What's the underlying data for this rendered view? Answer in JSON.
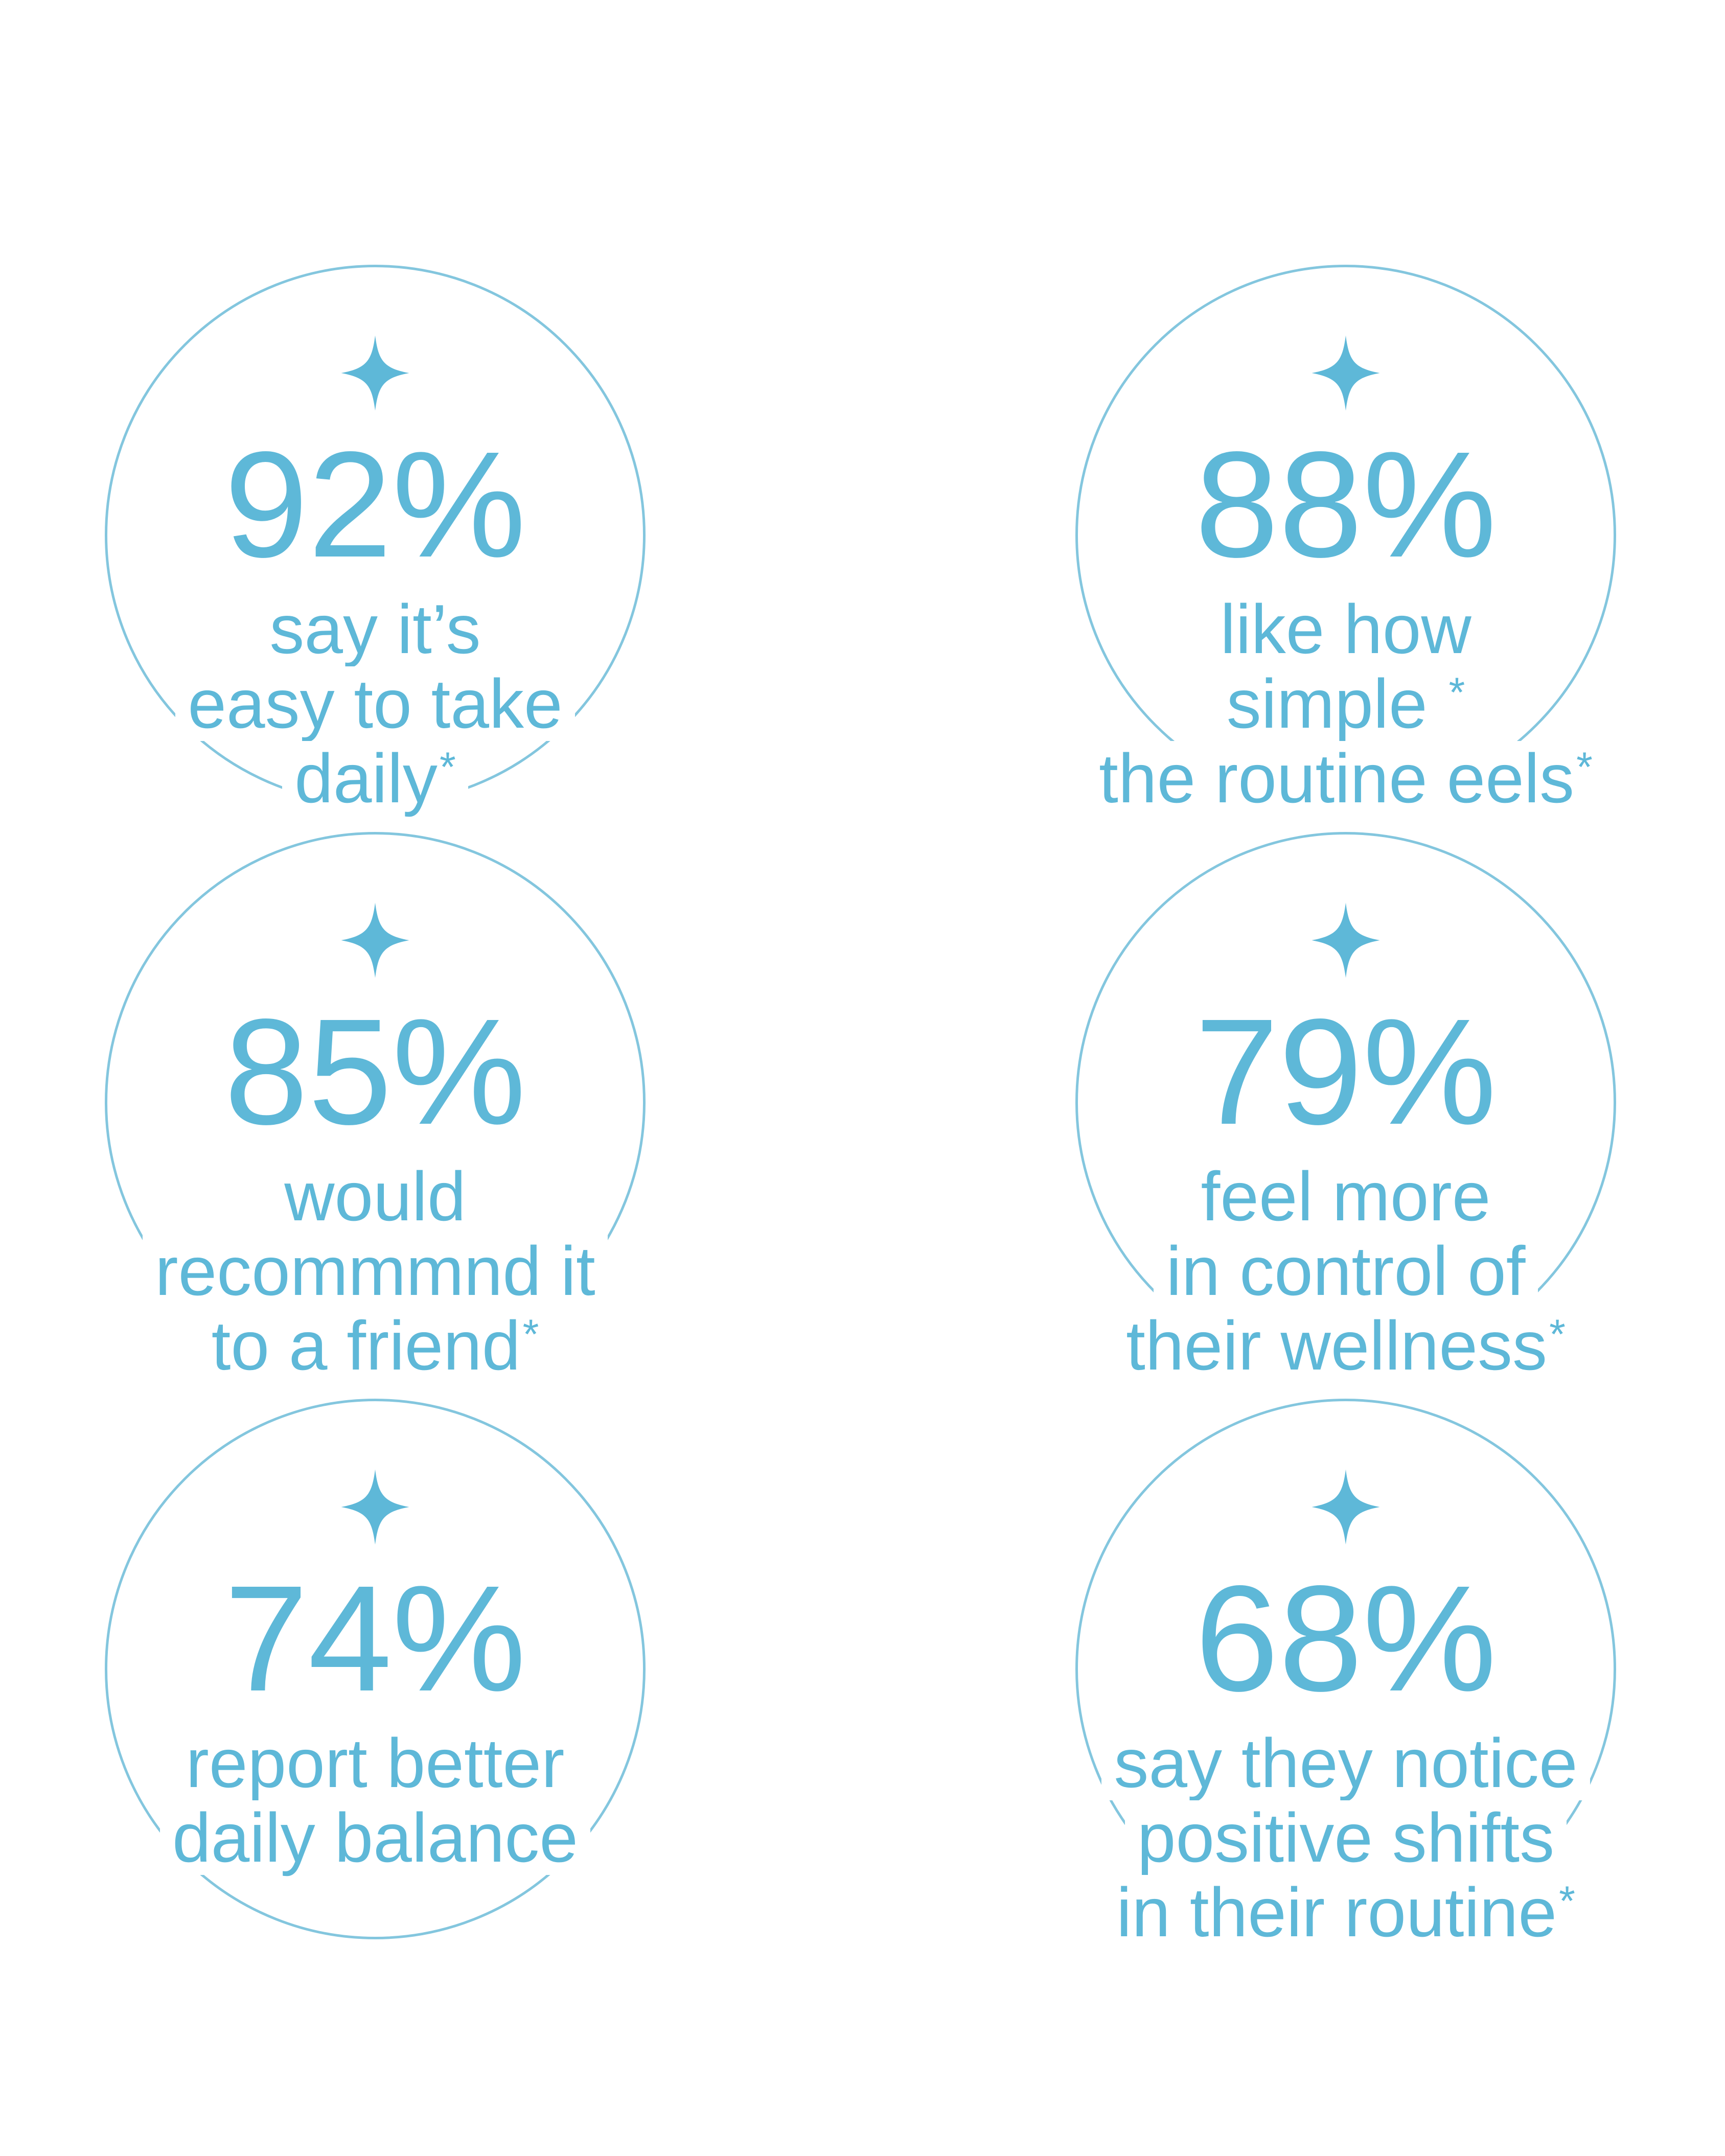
{
  "theme": {
    "bg": "#ffffff",
    "accent": "#5eb8d8",
    "stroke": "#83c6de"
  },
  "icons": {
    "sparkle": "four-point-sparkle"
  },
  "stats": [
    {
      "value": "92%",
      "lines": [
        "say it’s",
        "easy to take",
        "daily*"
      ]
    },
    {
      "value": "88%",
      "lines": [
        "like how",
        "simple *",
        "the routine eels*"
      ]
    },
    {
      "value": "85%",
      "lines": [
        "would",
        "recommmnd it",
        "to a friend*"
      ]
    },
    {
      "value": "79%",
      "lines": [
        "feel more",
        "in control of",
        "their wellness*"
      ]
    },
    {
      "value": "74%",
      "lines": [
        "report better",
        "daily balance"
      ]
    },
    {
      "value": "68%",
      "lines": [
        "say they notice",
        "positive shifts",
        "in their routine*"
      ]
    }
  ],
  "chart_data": {
    "type": "table",
    "title": "",
    "categories": [
      "say it’s easy to take daily*",
      "like how simple * the routine eels*",
      "would recommmnd it to a friend*",
      "feel more in control of their wellness*",
      "report better daily balance",
      "say they notice positive shifts in their routine*"
    ],
    "values": [
      92,
      88,
      85,
      79,
      74,
      68
    ],
    "unit": "%",
    "layout": "2x3 grid of thin-outlined circles, each with sparkle icon, large percentage, caption; caption lines mask circle stroke with white"
  }
}
